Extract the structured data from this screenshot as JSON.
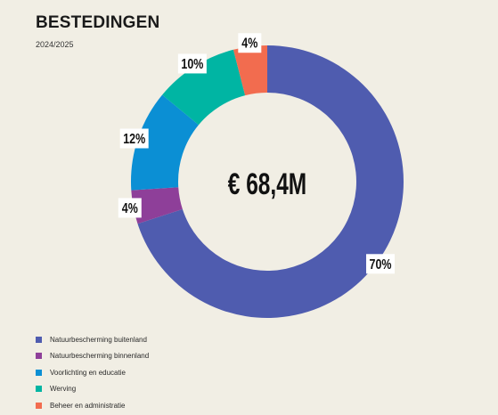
{
  "header": {
    "title": "BESTEDINGEN",
    "subtitle": "2024/2025"
  },
  "chart_data": {
    "type": "pie",
    "center_label": "€ 68,4M",
    "categories": [
      "Natuurbescherming buitenland",
      "Natuurbescherming binnenland",
      "Voorlichting en educatie",
      "Werving",
      "Beheer en administratie"
    ],
    "values": [
      70,
      4,
      12,
      10,
      4
    ],
    "value_labels": [
      "70%",
      "4%",
      "12%",
      "10%",
      "4%"
    ],
    "colors": [
      "#4f5caf",
      "#8e3f99",
      "#0b8fd4",
      "#00b5a3",
      "#f26c4f"
    ],
    "legend_position": "bottom-left",
    "donut": true
  }
}
